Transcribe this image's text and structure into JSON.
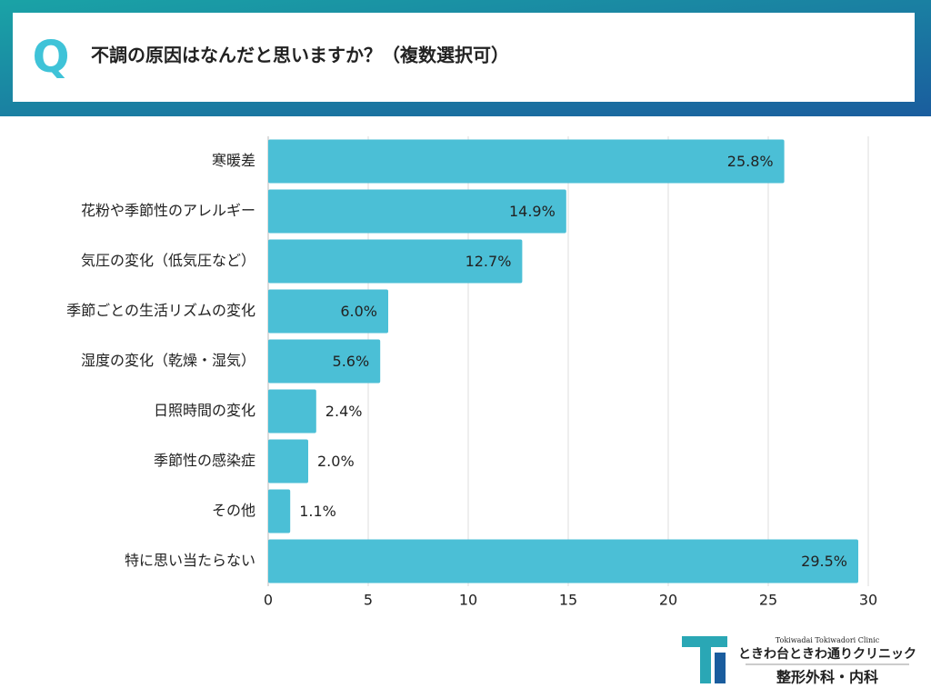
{
  "header": {
    "badge": "Q"
  },
  "chart_data": {
    "type": "bar",
    "orientation": "horizontal",
    "title": "不調の原因はなんだと思いますか？（複数選択可）",
    "categories": [
      "寒暖差",
      "花粉や季節性のアレルギー",
      "気圧の変化（低気圧など）",
      "季節ごとの生活リズムの変化",
      "湿度の変化（乾燥・湿気）",
      "日照時間の変化",
      "季節性の感染症",
      "その他",
      "特に思い当たらない"
    ],
    "values": [
      25.8,
      14.9,
      12.7,
      6.0,
      5.6,
      2.4,
      2.0,
      1.1,
      29.5
    ],
    "value_labels": [
      "25.8%",
      "14.9%",
      "12.7%",
      "6.0%",
      "5.6%",
      "2.4%",
      "2.0%",
      "1.1%",
      "29.5%"
    ],
    "color": "#4bbfd6",
    "xlim": [
      0,
      30
    ],
    "xticks": [
      0,
      5,
      10,
      15,
      20,
      25,
      30
    ],
    "grid": true
  },
  "logo": {
    "subtitle": "Tokiwadai Tokiwadori Clinic",
    "name": "ときわ台ときわ通りクリニック",
    "department": "整形外科・内科"
  }
}
